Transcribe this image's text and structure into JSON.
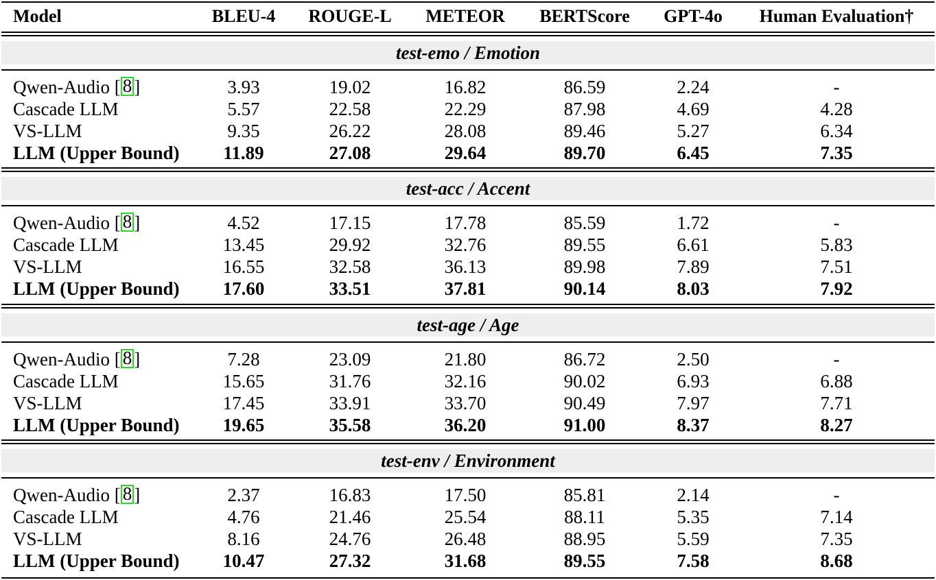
{
  "header": [
    "Model",
    "BLEU-4",
    "ROUGE-L",
    "METEOR",
    "BERTScore",
    "GPT-4o",
    "Human Evaluation†"
  ],
  "citation": "8",
  "sections": [
    {
      "title_italic": "test-emo",
      "title_rest": " / Emotion",
      "rows": [
        {
          "model": "Qwen-Audio [",
          "cite": true,
          "values": [
            "3.93",
            "19.02",
            "16.82",
            "86.59",
            "2.24",
            "-"
          ]
        },
        {
          "model": "Cascade LLM",
          "cite": false,
          "values": [
            "5.57",
            "22.58",
            "22.29",
            "87.98",
            "4.69",
            "4.28"
          ]
        },
        {
          "model": "VS-LLM",
          "cite": false,
          "values": [
            "9.35",
            "26.22",
            "28.08",
            "89.46",
            "5.27",
            "6.34"
          ]
        },
        {
          "model": "LLM (Upper Bound)",
          "cite": false,
          "bold": true,
          "values": [
            "11.89",
            "27.08",
            "29.64",
            "89.70",
            "6.45",
            "7.35"
          ]
        }
      ]
    },
    {
      "title_italic": "test-acc",
      "title_rest": " / Accent",
      "rows": [
        {
          "model": "Qwen-Audio [",
          "cite": true,
          "values": [
            "4.52",
            "17.15",
            "17.78",
            "85.59",
            "1.72",
            "-"
          ]
        },
        {
          "model": "Cascade LLM",
          "cite": false,
          "values": [
            "13.45",
            "29.92",
            "32.76",
            "89.55",
            "6.61",
            "5.83"
          ]
        },
        {
          "model": "VS-LLM",
          "cite": false,
          "values": [
            "16.55",
            "32.58",
            "36.13",
            "89.98",
            "7.89",
            "7.51"
          ]
        },
        {
          "model": "LLM (Upper Bound)",
          "cite": false,
          "bold": true,
          "values": [
            "17.60",
            "33.51",
            "37.81",
            "90.14",
            "8.03",
            "7.92"
          ]
        }
      ]
    },
    {
      "title_italic": "test-age",
      "title_rest": " / Age",
      "rows": [
        {
          "model": "Qwen-Audio [",
          "cite": true,
          "values": [
            "7.28",
            "23.09",
            "21.80",
            "86.72",
            "2.50",
            "-"
          ]
        },
        {
          "model": "Cascade LLM",
          "cite": false,
          "values": [
            "15.65",
            "31.76",
            "32.16",
            "90.02",
            "6.93",
            "6.88"
          ]
        },
        {
          "model": "VS-LLM",
          "cite": false,
          "values": [
            "17.45",
            "33.91",
            "33.70",
            "90.49",
            "7.97",
            "7.71"
          ]
        },
        {
          "model": "LLM (Upper Bound)",
          "cite": false,
          "bold": true,
          "values": [
            "19.65",
            "35.58",
            "36.20",
            "91.00",
            "8.37",
            "8.27"
          ]
        }
      ]
    },
    {
      "title_italic": "test-env",
      "title_rest": " / Environment",
      "rows": [
        {
          "model": "Qwen-Audio [",
          "cite": true,
          "values": [
            "2.37",
            "16.83",
            "17.50",
            "85.81",
            "2.14",
            "-"
          ]
        },
        {
          "model": "Cascade LLM",
          "cite": false,
          "values": [
            "4.76",
            "21.46",
            "25.54",
            "88.11",
            "5.35",
            "7.14"
          ]
        },
        {
          "model": "VS-LLM",
          "cite": false,
          "values": [
            "8.16",
            "24.76",
            "26.48",
            "88.95",
            "5.59",
            "7.35"
          ]
        },
        {
          "model": "LLM (Upper Bound)",
          "cite": false,
          "bold": true,
          "values": [
            "10.47",
            "27.32",
            "31.68",
            "89.55",
            "7.58",
            "8.68"
          ]
        }
      ]
    }
  ]
}
